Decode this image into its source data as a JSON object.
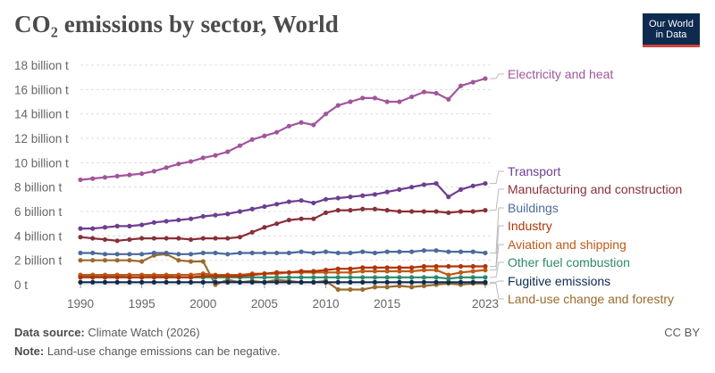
{
  "header": {
    "title": "CO₂ emissions by sector, World",
    "logo_line1": "Our World",
    "logo_line2": "in Data"
  },
  "footer": {
    "source_label": "Data source:",
    "source_text": "Climate Watch (2026)",
    "note_label": "Note:",
    "note_text": "Land-use change emissions can be negative.",
    "license": "CC BY"
  },
  "chart_data": {
    "type": "line",
    "title": "CO₂ emissions by sector, World",
    "xlabel": "",
    "ylabel": "",
    "unit": "billion t",
    "xlim": [
      1990,
      2023
    ],
    "ylim": [
      0,
      18
    ],
    "grid": true,
    "y_ticks": [
      {
        "value": 0,
        "label": "0 t"
      },
      {
        "value": 2,
        "label": "2 billion t"
      },
      {
        "value": 4,
        "label": "4 billion t"
      },
      {
        "value": 6,
        "label": "6 billion t"
      },
      {
        "value": 8,
        "label": "8 billion t"
      },
      {
        "value": 10,
        "label": "10 billion t"
      },
      {
        "value": 12,
        "label": "12 billion t"
      },
      {
        "value": 14,
        "label": "14 billion t"
      },
      {
        "value": 16,
        "label": "16 billion t"
      },
      {
        "value": 18,
        "label": "18 billion t"
      }
    ],
    "x_ticks": [
      {
        "value": 1990,
        "label": "1990"
      },
      {
        "value": 1995,
        "label": "1995"
      },
      {
        "value": 2000,
        "label": "2000"
      },
      {
        "value": 2005,
        "label": "2005"
      },
      {
        "value": 2010,
        "label": "2010"
      },
      {
        "value": 2015,
        "label": "2015"
      },
      {
        "value": 2023,
        "label": "2023"
      }
    ],
    "x": [
      1990,
      1991,
      1992,
      1993,
      1994,
      1995,
      1996,
      1997,
      1998,
      1999,
      2000,
      2001,
      2002,
      2003,
      2004,
      2005,
      2006,
      2007,
      2008,
      2009,
      2010,
      2011,
      2012,
      2013,
      2014,
      2015,
      2016,
      2017,
      2018,
      2019,
      2020,
      2021,
      2022,
      2023
    ],
    "series": [
      {
        "name": "Electricity and heat",
        "color": "#a2559c",
        "values": [
          8.6,
          8.7,
          8.8,
          8.9,
          9.0,
          9.1,
          9.3,
          9.6,
          9.9,
          10.1,
          10.4,
          10.6,
          10.9,
          11.4,
          11.9,
          12.2,
          12.5,
          13.0,
          13.3,
          13.1,
          14.0,
          14.7,
          15.0,
          15.3,
          15.3,
          15.0,
          15.0,
          15.4,
          15.8,
          15.7,
          15.2,
          16.3,
          16.6,
          16.9
        ]
      },
      {
        "name": "Transport",
        "color": "#6d3e91",
        "values": [
          4.6,
          4.6,
          4.7,
          4.8,
          4.8,
          4.9,
          5.1,
          5.2,
          5.3,
          5.4,
          5.6,
          5.7,
          5.8,
          6.0,
          6.2,
          6.4,
          6.6,
          6.8,
          6.9,
          6.7,
          7.0,
          7.1,
          7.2,
          7.3,
          7.4,
          7.6,
          7.8,
          8.0,
          8.2,
          8.3,
          7.2,
          7.8,
          8.1,
          8.3
        ]
      },
      {
        "name": "Manufacturing and construction",
        "color": "#883039",
        "values": [
          3.9,
          3.8,
          3.7,
          3.6,
          3.7,
          3.8,
          3.8,
          3.8,
          3.8,
          3.7,
          3.8,
          3.8,
          3.8,
          3.9,
          4.3,
          4.7,
          5.0,
          5.3,
          5.4,
          5.4,
          5.9,
          6.1,
          6.1,
          6.2,
          6.2,
          6.1,
          6.0,
          6.0,
          6.0,
          6.0,
          5.9,
          6.0,
          6.0,
          6.1
        ]
      },
      {
        "name": "Buildings",
        "color": "#4c6a9c",
        "values": [
          2.6,
          2.6,
          2.5,
          2.5,
          2.5,
          2.5,
          2.6,
          2.6,
          2.5,
          2.5,
          2.6,
          2.6,
          2.5,
          2.6,
          2.6,
          2.6,
          2.6,
          2.6,
          2.7,
          2.6,
          2.7,
          2.6,
          2.6,
          2.7,
          2.6,
          2.7,
          2.7,
          2.7,
          2.8,
          2.8,
          2.7,
          2.7,
          2.7,
          2.6
        ]
      },
      {
        "name": "Industry",
        "color": "#b13507",
        "values": [
          0.6,
          0.6,
          0.6,
          0.6,
          0.6,
          0.6,
          0.6,
          0.6,
          0.6,
          0.6,
          0.7,
          0.7,
          0.7,
          0.7,
          0.8,
          0.9,
          1.0,
          1.0,
          1.1,
          1.1,
          1.2,
          1.3,
          1.3,
          1.4,
          1.4,
          1.4,
          1.4,
          1.4,
          1.5,
          1.5,
          1.5,
          1.5,
          1.5,
          1.5
        ]
      },
      {
        "name": "Aviation and shipping",
        "color": "#c05917",
        "values": [
          0.8,
          0.8,
          0.8,
          0.8,
          0.8,
          0.8,
          0.8,
          0.8,
          0.8,
          0.8,
          0.9,
          0.8,
          0.8,
          0.8,
          0.9,
          0.9,
          0.9,
          1.0,
          1.0,
          1.0,
          1.0,
          1.0,
          1.0,
          1.1,
          1.1,
          1.1,
          1.1,
          1.1,
          1.2,
          1.2,
          0.8,
          1.0,
          1.1,
          1.2
        ]
      },
      {
        "name": "Other fuel combustion",
        "color": "#2a8a6a",
        "values": [
          0.7,
          0.7,
          0.7,
          0.7,
          0.6,
          0.6,
          0.7,
          0.7,
          0.6,
          0.6,
          0.6,
          0.6,
          0.6,
          0.6,
          0.6,
          0.6,
          0.6,
          0.6,
          0.6,
          0.6,
          0.6,
          0.6,
          0.6,
          0.6,
          0.6,
          0.6,
          0.6,
          0.6,
          0.6,
          0.6,
          0.5,
          0.6,
          0.6,
          0.6
        ]
      },
      {
        "name": "Fugitive emissions",
        "color": "#0d2a4f",
        "values": [
          0.2,
          0.2,
          0.2,
          0.2,
          0.2,
          0.2,
          0.2,
          0.2,
          0.2,
          0.2,
          0.2,
          0.2,
          0.2,
          0.2,
          0.2,
          0.2,
          0.2,
          0.2,
          0.2,
          0.2,
          0.2,
          0.2,
          0.2,
          0.2,
          0.2,
          0.2,
          0.2,
          0.2,
          0.2,
          0.2,
          0.2,
          0.2,
          0.2,
          0.2
        ]
      },
      {
        "name": "Land-use change and forestry",
        "color": "#9a6b2e",
        "values": [
          2.0,
          2.0,
          2.0,
          2.0,
          2.0,
          1.9,
          2.4,
          2.5,
          2.0,
          1.9,
          1.9,
          0.0,
          0.4,
          0.2,
          0.3,
          0.2,
          0.4,
          0.3,
          0.2,
          0.2,
          0.3,
          -0.4,
          -0.4,
          -0.4,
          -0.2,
          -0.2,
          -0.1,
          -0.2,
          -0.1,
          0.0,
          0.1,
          0.0,
          0.1,
          0.1
        ]
      }
    ]
  }
}
